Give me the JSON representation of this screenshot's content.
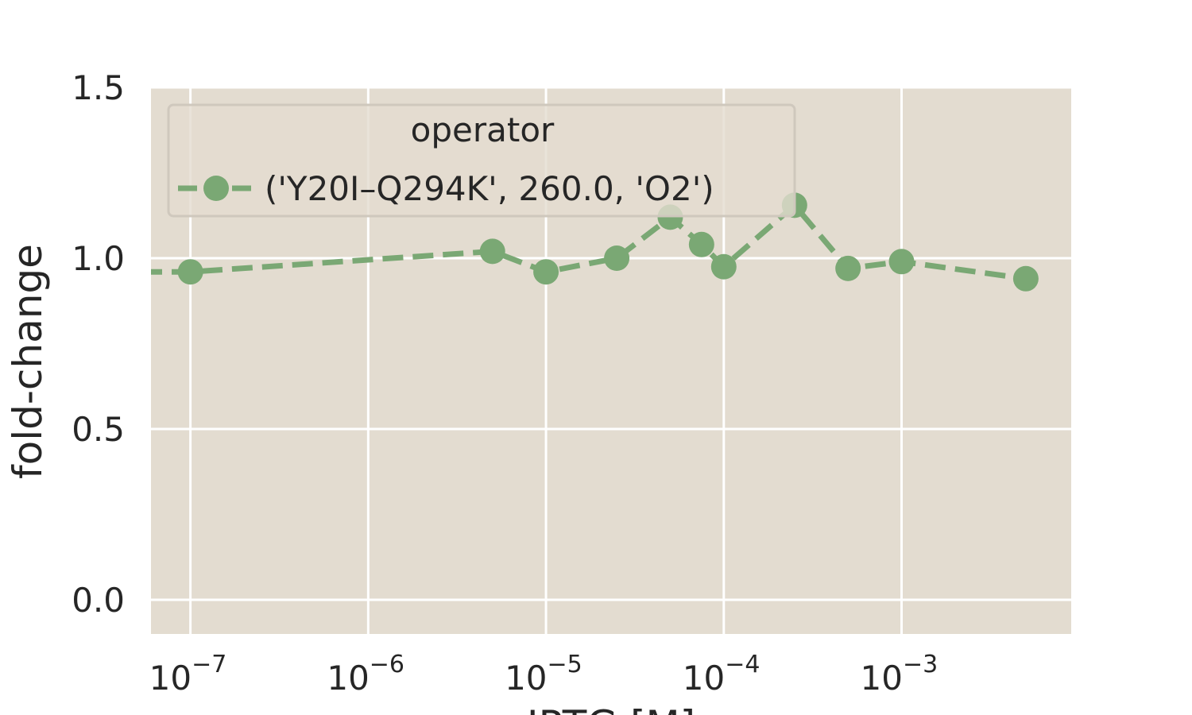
{
  "chart_data": {
    "type": "line",
    "title": "",
    "xlabel": "IPTG [M]",
    "ylabel": "fold-change",
    "xscale": "log",
    "xlim": [
      6e-08,
      0.009
    ],
    "ylim": [
      -0.1,
      1.5
    ],
    "grid": true,
    "background_color": "#e3dcd0",
    "legend": {
      "title": "operator",
      "placement": "upper-left"
    },
    "x_ticks": [
      {
        "value": 1e-07,
        "base": "10",
        "exp": "−7"
      },
      {
        "value": 1e-06,
        "base": "10",
        "exp": "−6"
      },
      {
        "value": 1e-05,
        "base": "10",
        "exp": "−5"
      },
      {
        "value": 0.0001,
        "base": "10",
        "exp": "−4"
      },
      {
        "value": 0.001,
        "base": "10",
        "exp": "−3"
      }
    ],
    "y_ticks": [
      {
        "value": 0.0,
        "label": "0.0"
      },
      {
        "value": 0.5,
        "label": "0.5"
      },
      {
        "value": 1.0,
        "label": "1.0"
      },
      {
        "value": 1.5,
        "label": "1.5"
      }
    ],
    "series": [
      {
        "name": "('Y20I–Q294K', 260.0, 'O2')",
        "color": "#7aa874",
        "linestyle": "dashed",
        "marker": "circle",
        "x": [
          0,
          1e-07,
          5e-06,
          1e-05,
          2.5e-05,
          5e-05,
          7.5e-05,
          0.0001,
          0.00025,
          0.0005,
          0.001,
          0.005
        ],
        "y": [
          0.96,
          0.96,
          1.02,
          0.96,
          1.0,
          1.12,
          1.04,
          0.975,
          1.155,
          0.97,
          0.99,
          0.94
        ]
      }
    ]
  }
}
